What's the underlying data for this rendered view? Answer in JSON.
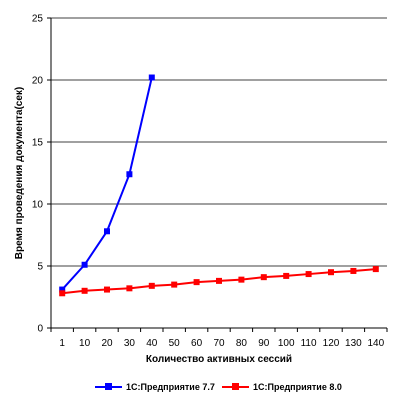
{
  "chart_data": {
    "type": "line",
    "title": "",
    "xlabel": "Количество активных сессий",
    "ylabel": "Время проведения документа(сек)",
    "x_categories": [
      "1",
      "10",
      "20",
      "30",
      "40",
      "50",
      "60",
      "70",
      "80",
      "90",
      "100",
      "110",
      "120",
      "130",
      "140"
    ],
    "y_ticks": [
      "0",
      "5",
      "10",
      "15",
      "20",
      "25"
    ],
    "ylim": [
      0,
      25
    ],
    "grid": "horizontal",
    "legend_position": "bottom",
    "series": [
      {
        "name": "1С:Предприятие 7.7",
        "color": "#0000ff",
        "marker": "square",
        "values": [
          3.1,
          5.1,
          7.8,
          12.4,
          20.2
        ]
      },
      {
        "name": "1С:Предприятие 8.0",
        "color": "#ff0000",
        "marker": "square",
        "values": [
          2.8,
          3.0,
          3.1,
          3.2,
          3.4,
          3.5,
          3.7,
          3.8,
          3.9,
          4.1,
          4.2,
          4.35,
          4.5,
          4.6,
          4.75
        ]
      }
    ]
  }
}
